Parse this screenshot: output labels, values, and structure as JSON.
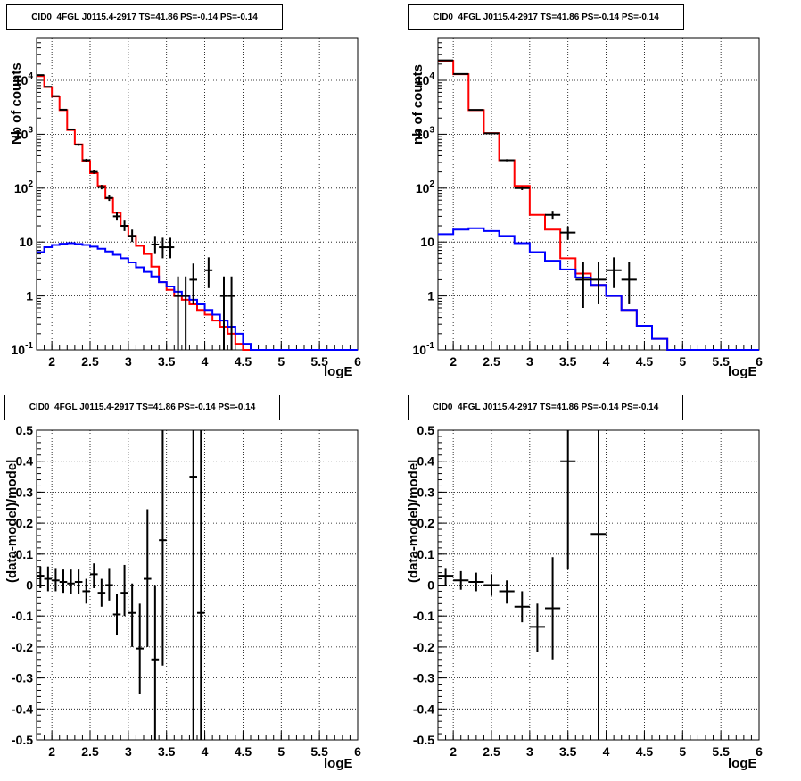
{
  "chart_data": [
    {
      "id": "top-left",
      "type": "step-histogram",
      "title": "CID0_4FGL J0115.4-2917 TS=41.86 PS=-0.14 PS=-0.14",
      "xlabel": "logE",
      "ylabel": "Nb of counts",
      "xlim": [
        1.8,
        6
      ],
      "ylim": [
        0.1,
        60000
      ],
      "log_y": true,
      "grid": true,
      "x_ticks": [
        "2",
        "2.5",
        "3",
        "3.5",
        "4",
        "4.5",
        "5",
        "5.5",
        "6"
      ],
      "y_ticks": [
        "10^-1",
        "1",
        "10",
        "10^2",
        "10^3",
        "10^4"
      ],
      "bin_edges_start": 1.8,
      "bin_width": 0.1,
      "series": [
        {
          "color": "#ff0000",
          "values": [
            12000,
            7500,
            5000,
            2800,
            1200,
            650,
            320,
            190,
            110,
            65,
            35,
            20,
            13,
            8.5,
            6,
            3.5,
            1.8,
            1.3,
            1.0,
            0.85,
            0.7,
            0.55,
            0.45,
            0.35,
            0.27,
            0.2,
            0.13,
            0.1,
            0.1,
            0.1,
            0.1,
            0.1,
            0.1,
            0.1,
            0.1,
            0.1,
            0.1,
            0.1,
            0.1,
            0.1,
            0.1,
            0.1
          ]
        },
        {
          "color": "#0000ff",
          "values": [
            6.5,
            8,
            8.8,
            9.3,
            9.5,
            9.2,
            8.8,
            8.2,
            7.5,
            6.7,
            5.8,
            5.0,
            4.2,
            3.4,
            2.8,
            2.3,
            1.8,
            1.5,
            1.2,
            1.0,
            0.85,
            0.7,
            0.55,
            0.45,
            0.35,
            0.27,
            0.2,
            0.13,
            0.1,
            0.1,
            0.1,
            0.1,
            0.1,
            0.1,
            0.1,
            0.1,
            0.1,
            0.1,
            0.1,
            0.1,
            0.1,
            0.1
          ]
        }
      ],
      "points": [
        {
          "x": 1.85,
          "y": 12500,
          "lo": 12300,
          "hi": 12700
        },
        {
          "x": 1.95,
          "y": 7600,
          "lo": 7450,
          "hi": 7750
        },
        {
          "x": 2.05,
          "y": 5100,
          "lo": 5000,
          "hi": 5200
        },
        {
          "x": 2.15,
          "y": 2850,
          "lo": 2780,
          "hi": 2920
        },
        {
          "x": 2.25,
          "y": 1230,
          "lo": 1190,
          "hi": 1270
        },
        {
          "x": 2.35,
          "y": 640,
          "lo": 610,
          "hi": 670
        },
        {
          "x": 2.45,
          "y": 330,
          "lo": 310,
          "hi": 350
        },
        {
          "x": 2.55,
          "y": 200,
          "lo": 185,
          "hi": 215
        },
        {
          "x": 2.65,
          "y": 105,
          "lo": 95,
          "hi": 115
        },
        {
          "x": 2.75,
          "y": 66,
          "lo": 58,
          "hi": 74
        },
        {
          "x": 2.85,
          "y": 30,
          "lo": 25,
          "hi": 36
        },
        {
          "x": 2.95,
          "y": 20,
          "lo": 16,
          "hi": 25
        },
        {
          "x": 3.05,
          "y": 13,
          "lo": 10,
          "hi": 17
        },
        {
          "x": 3.35,
          "y": 9,
          "lo": 6,
          "hi": 13
        },
        {
          "x": 3.45,
          "y": 8,
          "lo": 5,
          "hi": 12
        },
        {
          "x": 3.55,
          "y": 8,
          "lo": 5,
          "hi": 12
        },
        {
          "x": 3.65,
          "y": 1,
          "lo": 0.1,
          "hi": 2.3
        },
        {
          "x": 3.75,
          "y": 1,
          "lo": 0.1,
          "hi": 2.3
        },
        {
          "x": 3.85,
          "y": 2,
          "lo": 0.7,
          "hi": 4
        },
        {
          "x": 4.05,
          "y": 3,
          "lo": 1.4,
          "hi": 5.2
        },
        {
          "x": 4.25,
          "y": 1,
          "lo": 0.1,
          "hi": 2.3
        },
        {
          "x": 4.35,
          "y": 1,
          "lo": 0.1,
          "hi": 2.3
        }
      ]
    },
    {
      "id": "top-right",
      "type": "step-histogram",
      "title": "CID0_4FGL J0115.4-2917 TS=41.86 PS=-0.14 PS=-0.14",
      "xlabel": "logE",
      "ylabel": "nb of counts",
      "xlim": [
        1.8,
        6
      ],
      "ylim": [
        0.1,
        60000
      ],
      "log_y": true,
      "grid": true,
      "x_ticks": [
        "2",
        "2.5",
        "3",
        "3.5",
        "4",
        "4.5",
        "5",
        "5.5",
        "6"
      ],
      "y_ticks": [
        "10^-1",
        "1",
        "10",
        "10^2",
        "10^3",
        "10^4"
      ],
      "bin_edges_start": 1.8,
      "bin_width": 0.2,
      "series": [
        {
          "color": "#ff0000",
          "values": [
            23000,
            13000,
            2800,
            1050,
            330,
            110,
            32,
            17,
            5,
            2.6,
            1.6,
            1.0,
            0.55,
            0.28,
            0.16,
            0.1,
            0.1,
            0.1,
            0.1,
            0.1,
            0.1
          ]
        },
        {
          "color": "#0000ff",
          "values": [
            14,
            17,
            18,
            16,
            13,
            9.5,
            6.5,
            4.5,
            3.1,
            2.2,
            1.6,
            1.0,
            0.55,
            0.28,
            0.16,
            0.1,
            0.1,
            0.1,
            0.1,
            0.1,
            0.1
          ]
        }
      ],
      "points": [
        {
          "x": 1.9,
          "y": 23500,
          "lo": 23200,
          "hi": 23800
        },
        {
          "x": 2.1,
          "y": 13100,
          "lo": 12900,
          "hi": 13300
        },
        {
          "x": 2.3,
          "y": 2830,
          "lo": 2780,
          "hi": 2880
        },
        {
          "x": 2.5,
          "y": 1040,
          "lo": 1010,
          "hi": 1070
        },
        {
          "x": 2.7,
          "y": 330,
          "lo": 315,
          "hi": 345
        },
        {
          "x": 2.9,
          "y": 100,
          "lo": 92,
          "hi": 108
        },
        {
          "x": 3.3,
          "y": 32,
          "lo": 27,
          "hi": 38
        },
        {
          "x": 3.5,
          "y": 15,
          "lo": 11,
          "hi": 19.5
        },
        {
          "x": 3.7,
          "y": 2,
          "lo": 0.6,
          "hi": 4.2
        },
        {
          "x": 3.9,
          "y": 2,
          "lo": 0.7,
          "hi": 4.2
        },
        {
          "x": 4.1,
          "y": 3,
          "lo": 1.4,
          "hi": 5.2
        },
        {
          "x": 4.3,
          "y": 2,
          "lo": 0.7,
          "hi": 4.2
        }
      ]
    },
    {
      "id": "bottom-left",
      "type": "scatter",
      "title": "CID0_4FGL J0115.4-2917 TS=41.86 PS=-0.14 PS=-0.14",
      "xlabel": "logE",
      "ylabel": "(data-model)/model",
      "xlim": [
        1.8,
        6
      ],
      "ylim": [
        -0.5,
        0.5
      ],
      "log_y": false,
      "grid": true,
      "x_ticks": [
        "2",
        "2.5",
        "3",
        "3.5",
        "4",
        "4.5",
        "5",
        "5.5",
        "6"
      ],
      "y_ticks": [
        "-0.5",
        "-0.4",
        "-0.3",
        "-0.2",
        "-0.1",
        "0",
        "0.1",
        "0.2",
        "0.3",
        "0.4",
        "0.5"
      ],
      "x_halfwidth": 0.05,
      "points": [
        {
          "x": 1.85,
          "y": 0.03,
          "lo": -0.01,
          "hi": 0.06
        },
        {
          "x": 1.95,
          "y": 0.02,
          "lo": -0.02,
          "hi": 0.06
        },
        {
          "x": 2.05,
          "y": 0.015,
          "lo": -0.02,
          "hi": 0.055
        },
        {
          "x": 2.15,
          "y": 0.01,
          "lo": -0.025,
          "hi": 0.05
        },
        {
          "x": 2.25,
          "y": 0.005,
          "lo": -0.03,
          "hi": 0.05
        },
        {
          "x": 2.35,
          "y": 0.01,
          "lo": -0.03,
          "hi": 0.05
        },
        {
          "x": 2.45,
          "y": -0.02,
          "lo": -0.06,
          "hi": 0.02
        },
        {
          "x": 2.55,
          "y": 0.035,
          "lo": -0.01,
          "hi": 0.07
        },
        {
          "x": 2.65,
          "y": -0.025,
          "lo": -0.07,
          "hi": 0.02
        },
        {
          "x": 2.75,
          "y": 0.0,
          "lo": -0.05,
          "hi": 0.055
        },
        {
          "x": 2.85,
          "y": -0.095,
          "lo": -0.16,
          "hi": -0.03
        },
        {
          "x": 2.95,
          "y": -0.025,
          "lo": -0.1,
          "hi": 0.065
        },
        {
          "x": 3.05,
          "y": -0.09,
          "lo": -0.2,
          "hi": 0.005
        },
        {
          "x": 3.15,
          "y": -0.205,
          "lo": -0.35,
          "hi": -0.06
        },
        {
          "x": 3.25,
          "y": 0.02,
          "lo": -0.2,
          "hi": 0.245
        },
        {
          "x": 3.35,
          "y": -0.24,
          "lo": -0.5,
          "hi": 0.0
        },
        {
          "x": 3.45,
          "y": 0.145,
          "lo": -0.26,
          "hi": 0.5
        },
        {
          "x": 3.85,
          "y": 0.35,
          "lo": -0.5,
          "hi": 0.5
        },
        {
          "x": 3.95,
          "y": -0.09,
          "lo": -0.5,
          "hi": 0.5
        }
      ]
    },
    {
      "id": "bottom-right",
      "type": "scatter",
      "title": "CID0_4FGL J0115.4-2917 TS=41.86 PS=-0.14 PS=-0.14",
      "xlabel": "logE",
      "ylabel": "(data-model)/model",
      "xlim": [
        1.8,
        6
      ],
      "ylim": [
        -0.5,
        0.5
      ],
      "log_y": false,
      "grid": true,
      "x_ticks": [
        "2",
        "2.5",
        "3",
        "3.5",
        "4",
        "4.5",
        "5",
        "5.5",
        "6"
      ],
      "y_ticks": [
        "-0.5",
        "-0.4",
        "-0.3",
        "-0.2",
        "-0.1",
        "0",
        "0.1",
        "0.2",
        "0.3",
        "0.4",
        "0.5"
      ],
      "x_halfwidth": 0.1,
      "points": [
        {
          "x": 1.9,
          "y": 0.03,
          "lo": 0.0,
          "hi": 0.055
        },
        {
          "x": 2.1,
          "y": 0.015,
          "lo": -0.015,
          "hi": 0.045
        },
        {
          "x": 2.3,
          "y": 0.01,
          "lo": -0.02,
          "hi": 0.04
        },
        {
          "x": 2.5,
          "y": 0.0,
          "lo": -0.035,
          "hi": 0.035
        },
        {
          "x": 2.7,
          "y": -0.02,
          "lo": -0.06,
          "hi": 0.015
        },
        {
          "x": 2.9,
          "y": -0.07,
          "lo": -0.12,
          "hi": -0.02
        },
        {
          "x": 3.1,
          "y": -0.135,
          "lo": -0.215,
          "hi": -0.06
        },
        {
          "x": 3.3,
          "y": -0.075,
          "lo": -0.24,
          "hi": 0.09
        },
        {
          "x": 3.5,
          "y": 0.4,
          "lo": 0.05,
          "hi": 0.5
        },
        {
          "x": 3.9,
          "y": 0.165,
          "lo": -0.5,
          "hi": 0.5
        }
      ]
    }
  ]
}
